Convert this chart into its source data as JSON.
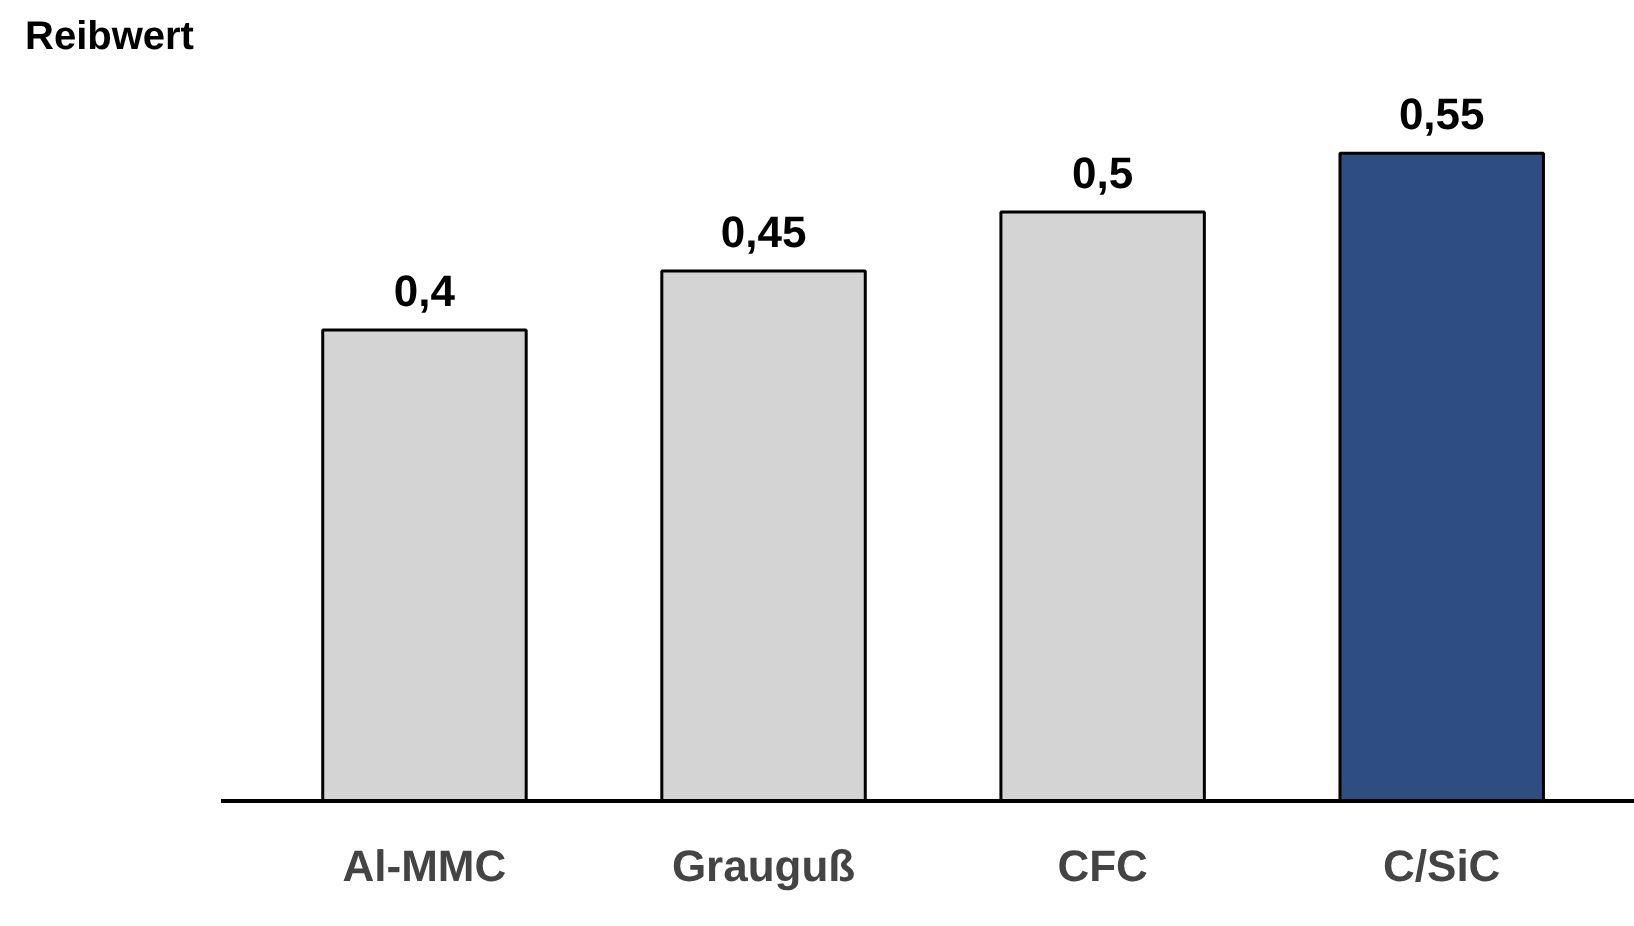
{
  "chart_data": {
    "type": "bar",
    "ylabel": "Reibwert",
    "categories": [
      "Al-MMC",
      "Grauguß",
      "CFC",
      "C/SiC"
    ],
    "values": [
      0.4,
      0.45,
      0.5,
      0.55
    ],
    "colors": [
      "#d4d4d4",
      "#d4d4d4",
      "#d4d4d4",
      "#2e4d80"
    ],
    "value_labels": [
      "0,4",
      "0,45",
      "0,5",
      "0,55"
    ],
    "grid": false
  }
}
